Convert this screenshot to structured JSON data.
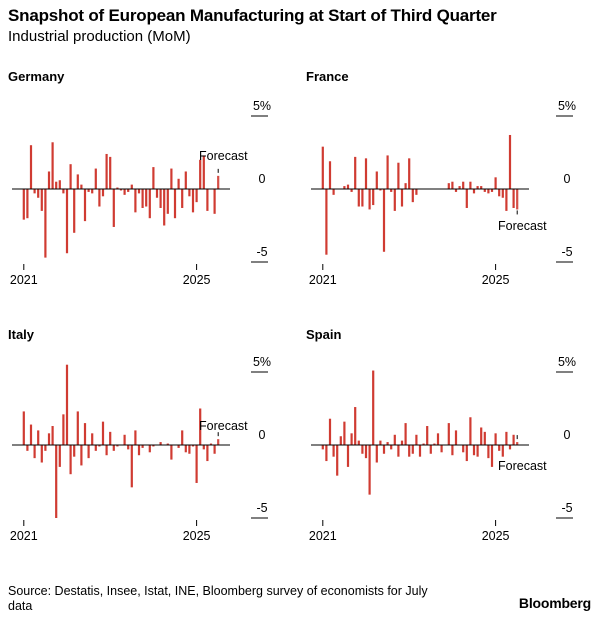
{
  "header": {
    "title": "Snapshot of European Manufacturing at Start of Third Quarter",
    "subtitle": "Industrial production (MoM)"
  },
  "footer": {
    "source": "Source: Destatis, Insee, Istat, INE, Bloomberg survey of economists for July data",
    "brand": "Bloomberg"
  },
  "colors": {
    "bar": "#d03b32",
    "axis": "#000000"
  },
  "chart_data": [
    {
      "type": "bar",
      "title": "Germany",
      "x": [
        "2021-01",
        "2021-02",
        "2021-03",
        "2021-04",
        "2021-05",
        "2021-06",
        "2021-07",
        "2021-08",
        "2021-09",
        "2021-10",
        "2021-11",
        "2021-12",
        "2022-01",
        "2022-02",
        "2022-03",
        "2022-04",
        "2022-05",
        "2022-06",
        "2022-07",
        "2022-08",
        "2022-09",
        "2022-10",
        "2022-11",
        "2022-12",
        "2023-01",
        "2023-02",
        "2023-03",
        "2023-04",
        "2023-05",
        "2023-06",
        "2023-07",
        "2023-08",
        "2023-09",
        "2023-10",
        "2023-11",
        "2023-12",
        "2024-01",
        "2024-02",
        "2024-03",
        "2024-04",
        "2024-05",
        "2024-06",
        "2024-07",
        "2024-08",
        "2024-09",
        "2024-10",
        "2024-11",
        "2024-12",
        "2025-01",
        "2025-02",
        "2025-03",
        "2025-04",
        "2025-05",
        "2025-06",
        "2025-07"
      ],
      "values": [
        -2.1,
        -2.0,
        3.0,
        -0.3,
        -0.6,
        -1.5,
        -4.7,
        1.2,
        3.2,
        0.5,
        0.6,
        -0.3,
        -4.4,
        1.7,
        -3.0,
        1.0,
        0.3,
        -2.2,
        -0.2,
        -0.3,
        1.4,
        -1.2,
        -0.5,
        2.4,
        2.2,
        -2.6,
        0.1,
        -0.1,
        -0.4,
        -0.2,
        0.3,
        -1.6,
        -0.3,
        -1.3,
        -1.2,
        -2.0,
        1.5,
        -0.6,
        -1.3,
        -2.5,
        -1.7,
        1.4,
        -2.0,
        0.7,
        -1.3,
        1.2,
        -0.5,
        -1.6,
        -0.9,
        2.0,
        2.3,
        -1.5,
        0.0,
        -1.7,
        0.9
      ],
      "forecast_index": 54,
      "annotation": "Forecast",
      "x_tick_labels": [
        "2021",
        "2025"
      ],
      "y_tick_labels": [
        "5%",
        "0",
        "-5"
      ],
      "ylim": [
        -5,
        5
      ]
    },
    {
      "type": "bar",
      "title": "France",
      "x": [
        "2021-01",
        "2021-02",
        "2021-03",
        "2021-04",
        "2021-05",
        "2021-06",
        "2021-07",
        "2021-08",
        "2021-09",
        "2021-10",
        "2021-11",
        "2021-12",
        "2022-01",
        "2022-02",
        "2022-03",
        "2022-04",
        "2022-05",
        "2022-06",
        "2022-07",
        "2022-08",
        "2022-09",
        "2022-10",
        "2022-11",
        "2022-12",
        "2023-01",
        "2023-02",
        "2023-03",
        "2023-04",
        "2023-05",
        "2023-06",
        "2023-07",
        "2023-08",
        "2023-09",
        "2023-10",
        "2023-11",
        "2023-12",
        "2024-01",
        "2024-02",
        "2024-03",
        "2024-04",
        "2024-05",
        "2024-06",
        "2024-07",
        "2024-08",
        "2024-09",
        "2024-10",
        "2024-11",
        "2024-12",
        "2025-01",
        "2025-02",
        "2025-03",
        "2025-04",
        "2025-05",
        "2025-06",
        "2025-07"
      ],
      "values": [
        2.9,
        -4.5,
        1.9,
        -0.4,
        0.0,
        0.0,
        0.2,
        0.3,
        -0.2,
        2.2,
        -1.2,
        -1.2,
        2.1,
        -1.4,
        -1.1,
        1.2,
        -0.1,
        -4.3,
        2.3,
        -0.2,
        -1.5,
        1.8,
        -1.2,
        0.4,
        2.1,
        -0.9,
        -0.4,
        0.0,
        0.0,
        0.0,
        0.0,
        0.0,
        0.0,
        0.0,
        0.0,
        0.4,
        0.5,
        -0.2,
        0.2,
        0.5,
        -1.3,
        0.5,
        -0.3,
        0.2,
        0.2,
        -0.2,
        -0.3,
        -0.2,
        0.8,
        -0.5,
        -0.6,
        -1.5,
        3.7,
        -1.3,
        -1.4
      ],
      "forecast_index": 54,
      "annotation": "Forecast",
      "x_tick_labels": [
        "2021",
        "2025"
      ],
      "y_tick_labels": [
        "5%",
        "0",
        "-5"
      ],
      "ylim": [
        -5,
        5
      ]
    },
    {
      "type": "bar",
      "title": "Italy",
      "x": [
        "2021-01",
        "2021-02",
        "2021-03",
        "2021-04",
        "2021-05",
        "2021-06",
        "2021-07",
        "2021-08",
        "2021-09",
        "2021-10",
        "2021-11",
        "2021-12",
        "2022-01",
        "2022-02",
        "2022-03",
        "2022-04",
        "2022-05",
        "2022-06",
        "2022-07",
        "2022-08",
        "2022-09",
        "2022-10",
        "2022-11",
        "2022-12",
        "2023-01",
        "2023-02",
        "2023-03",
        "2023-04",
        "2023-05",
        "2023-06",
        "2023-07",
        "2023-08",
        "2023-09",
        "2023-10",
        "2023-11",
        "2023-12",
        "2024-01",
        "2024-02",
        "2024-03",
        "2024-04",
        "2024-05",
        "2024-06",
        "2024-07",
        "2024-08",
        "2024-09",
        "2024-10",
        "2024-11",
        "2024-12",
        "2025-01",
        "2025-02",
        "2025-03",
        "2025-04",
        "2025-05",
        "2025-06",
        "2025-07"
      ],
      "values": [
        2.3,
        -0.4,
        1.4,
        -0.9,
        1.0,
        -1.2,
        -0.4,
        0.8,
        1.3,
        -5.0,
        -1.5,
        2.1,
        5.5,
        -2.0,
        -0.8,
        2.3,
        -1.4,
        1.5,
        -0.9,
        0.8,
        -0.4,
        -0.1,
        1.6,
        -0.7,
        0.9,
        -0.4,
        -0.1,
        0.0,
        0.7,
        -0.3,
        -2.9,
        1.0,
        -0.7,
        -0.2,
        0.0,
        -0.5,
        -0.1,
        0.0,
        0.2,
        0.0,
        0.1,
        -1.0,
        0.0,
        -0.2,
        1.0,
        -0.5,
        -0.6,
        -0.1,
        -2.6,
        2.5,
        -0.3,
        -1.1,
        0.1,
        -0.6,
        0.4
      ],
      "forecast_index": 54,
      "annotation": "Forecast",
      "x_tick_labels": [
        "2021",
        "2025"
      ],
      "y_tick_labels": [
        "5%",
        "0",
        "-5"
      ],
      "ylim": [
        -5,
        5
      ]
    },
    {
      "type": "bar",
      "title": "Spain",
      "x": [
        "2021-01",
        "2021-02",
        "2021-03",
        "2021-04",
        "2021-05",
        "2021-06",
        "2021-07",
        "2021-08",
        "2021-09",
        "2021-10",
        "2021-11",
        "2021-12",
        "2022-01",
        "2022-02",
        "2022-03",
        "2022-04",
        "2022-05",
        "2022-06",
        "2022-07",
        "2022-08",
        "2022-09",
        "2022-10",
        "2022-11",
        "2022-12",
        "2023-01",
        "2023-02",
        "2023-03",
        "2023-04",
        "2023-05",
        "2023-06",
        "2023-07",
        "2023-08",
        "2023-09",
        "2023-10",
        "2023-11",
        "2023-12",
        "2024-01",
        "2024-02",
        "2024-03",
        "2024-04",
        "2024-05",
        "2024-06",
        "2024-07",
        "2024-08",
        "2024-09",
        "2024-10",
        "2024-11",
        "2024-12",
        "2025-01",
        "2025-02",
        "2025-03",
        "2025-04",
        "2025-05",
        "2025-06",
        "2025-07"
      ],
      "values": [
        -0.3,
        -1.1,
        1.8,
        -0.8,
        -2.1,
        0.6,
        1.6,
        -1.5,
        0.8,
        2.6,
        0.3,
        -0.6,
        -0.9,
        -3.4,
        5.1,
        -1.2,
        0.3,
        -0.6,
        0.2,
        -0.3,
        0.7,
        -0.8,
        0.3,
        1.5,
        -0.8,
        -0.6,
        0.7,
        -0.8,
        0.1,
        1.3,
        -0.6,
        0.1,
        0.8,
        -0.5,
        0.0,
        1.5,
        -0.7,
        1.0,
        0.0,
        -0.5,
        -1.1,
        1.9,
        -0.7,
        -0.8,
        1.2,
        0.9,
        -0.9,
        -1.5,
        0.8,
        -0.4,
        -0.8,
        0.9,
        -0.3,
        0.7,
        0.2
      ],
      "forecast_index": 54,
      "annotation": "Forecast",
      "x_tick_labels": [
        "2021",
        "2025"
      ],
      "y_tick_labels": [
        "5%",
        "0",
        "-5"
      ],
      "ylim": [
        -5,
        5
      ]
    }
  ]
}
